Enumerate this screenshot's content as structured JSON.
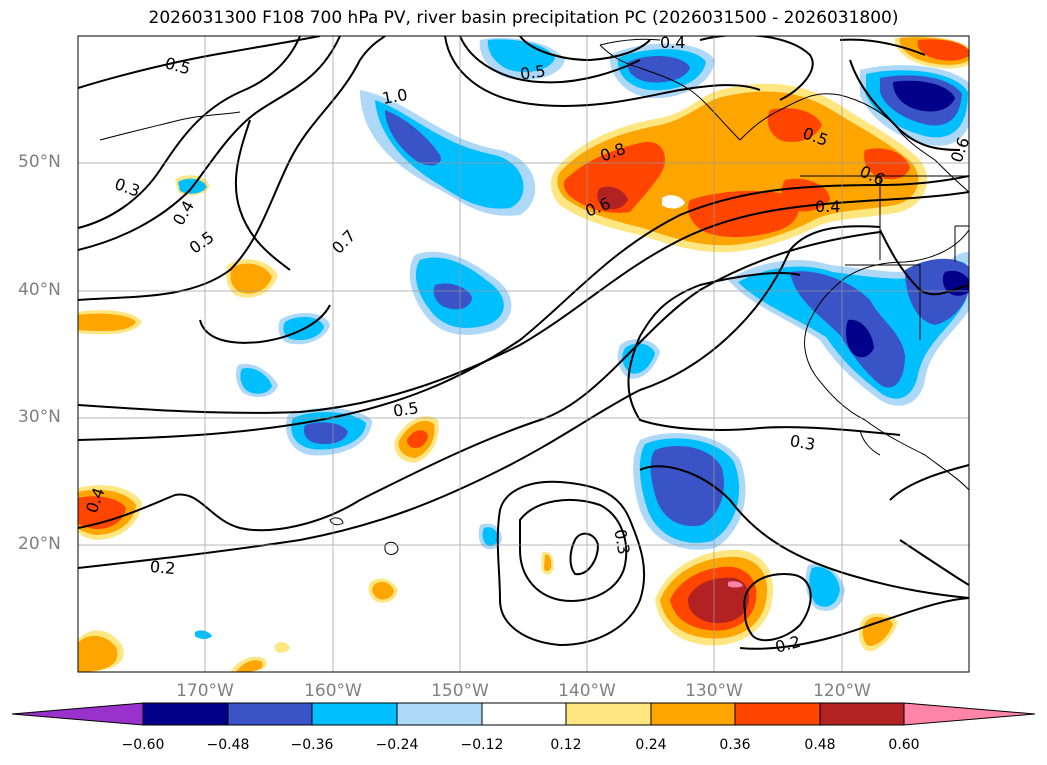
{
  "title": "2026031300 F108 700 hPa PV, river basin precipitation PC (2026031500 - 2026031800)",
  "lat_labels": [
    "20°N",
    "30°N",
    "40°N",
    "50°N"
  ],
  "lon_labels": [
    "170°W",
    "160°W",
    "150°W",
    "140°W",
    "130°W",
    "120°W"
  ],
  "contour_labels": [
    "0.5",
    "1.0",
    "0.7",
    "0.5",
    "0.3",
    "0.4",
    "0.5",
    "0.8",
    "0.6",
    "0.5",
    "0.6",
    "0.4",
    "0.5",
    "0.3",
    "0.3",
    "0.2",
    "0.2",
    "0.4",
    "0.6",
    "0.4"
  ],
  "colorbar": {
    "ticks": [
      "−0.60",
      "−0.48",
      "−0.36",
      "−0.24",
      "−0.12",
      "0.12",
      "0.24",
      "0.36",
      "0.48",
      "0.60"
    ],
    "colors": [
      "#9932cc",
      "#00008b",
      "#3a54c8",
      "#00bfff",
      "#add8f8",
      "#ffffff",
      "#ffe680",
      "#ffa500",
      "#ff4500",
      "#b22222",
      "#ff85a8"
    ]
  },
  "colors": {
    "neg_light": "#add8f8",
    "neg_mid": "#00bfff",
    "neg_strong": "#3a54c8",
    "neg_max": "#00008b",
    "pos_light": "#ffe680",
    "pos_mid": "#ffa500",
    "pos_strong": "#ff4500",
    "pos_max": "#b22222",
    "pos_top": "#ff85a8"
  }
}
